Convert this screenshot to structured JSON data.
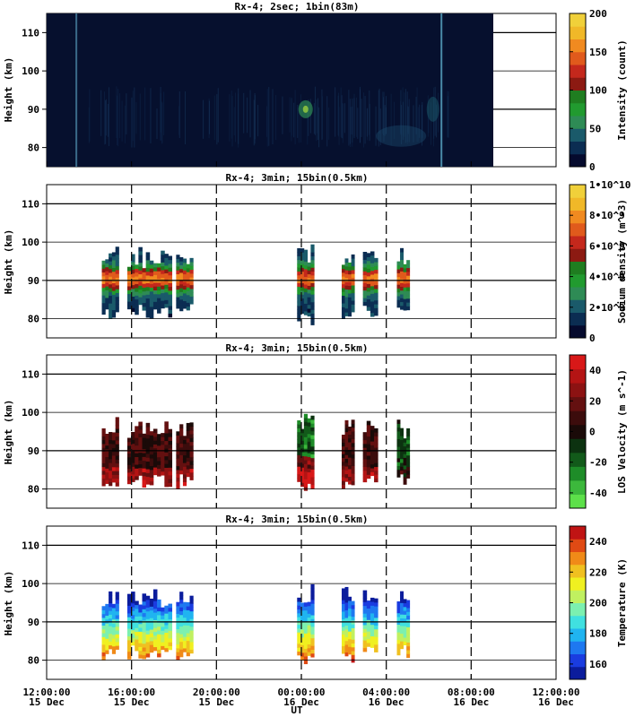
{
  "figure": {
    "xaxis": {
      "label": "UT",
      "ticks": [
        {
          "time": "12:00:00",
          "date": "15 Dec"
        },
        {
          "time": "16:00:00",
          "date": "15 Dec"
        },
        {
          "time": "20:00:00",
          "date": "15 Dec"
        },
        {
          "time": "00:00:00",
          "date": "16 Dec"
        },
        {
          "time": "04:00:00",
          "date": "16 Dec"
        },
        {
          "time": "08:00:00",
          "date": "16 Dec"
        },
        {
          "time": "12:00:00",
          "date": "16 Dec"
        }
      ]
    }
  },
  "chart_data": [
    {
      "type": "heatmap",
      "title": "Rx-4;  2sec; 1bin(83m)",
      "ylabel": "Height (km)",
      "ylim": [
        75,
        115
      ],
      "yticks": [
        80,
        90,
        100,
        110
      ],
      "xlim_hours": [
        12,
        36
      ],
      "colorbar": {
        "label": "Intensity (count)",
        "range": [
          0,
          200
        ],
        "ticks": [
          "0",
          "50",
          "100",
          "150",
          "200"
        ],
        "colors": [
          "#050a2d",
          "#0b2d52",
          "#1a5a6a",
          "#2e8b55",
          "#219a2f",
          "#1f7d20",
          "#8c1a12",
          "#c4281c",
          "#e05a1c",
          "#f08a20",
          "#f0b828",
          "#f0d03a"
        ]
      },
      "data_extent_hours": [
        12,
        31.2
      ]
    },
    {
      "type": "heatmap",
      "title": "Rx-4; 3min; 15bin(0.5km)",
      "ylabel": "Height (km)",
      "ylim": [
        75,
        115
      ],
      "yticks": [
        80,
        90,
        100,
        110
      ],
      "colorbar": {
        "label": "Sodium density (m^-3)",
        "range": [
          0,
          10000000000.0
        ],
        "ticks": [
          "0",
          "2•10^9",
          "4•10^9",
          "6•10^9",
          "8•10^9",
          "1•10^10"
        ],
        "colors": [
          "#050a2d",
          "#0b2d52",
          "#1a5a6a",
          "#2e8b55",
          "#219a2f",
          "#1f7d20",
          "#8c1a12",
          "#c4281c",
          "#e05a1c",
          "#f08a20",
          "#f0b828",
          "#f0d03a"
        ]
      },
      "segments_hours": [
        [
          14.6,
          15.4
        ],
        [
          15.8,
          17.9
        ],
        [
          18.1,
          18.9
        ],
        [
          23.8,
          24.6
        ],
        [
          25.9,
          26.5
        ],
        [
          26.9,
          27.6
        ],
        [
          28.5,
          29.1
        ]
      ]
    },
    {
      "type": "heatmap",
      "title": "Rx-4; 3min; 15bin(0.5km)",
      "ylabel": "Height (km)",
      "ylim": [
        75,
        115
      ],
      "yticks": [
        80,
        90,
        100,
        110
      ],
      "colorbar": {
        "label": "LOS Velocity (m s^-1)",
        "range": [
          -50,
          50
        ],
        "ticks": [
          "-40",
          "-20",
          "0",
          "20",
          "40"
        ],
        "colors": [
          "#5de04a",
          "#3cb83c",
          "#1e8c28",
          "#125a1a",
          "#0c3210",
          "#1a0a08",
          "#3c0c0c",
          "#641010",
          "#8c1212",
          "#b41414",
          "#d81818"
        ]
      },
      "segments_hours": [
        [
          14.6,
          15.4
        ],
        [
          15.8,
          17.9
        ],
        [
          18.1,
          18.9
        ],
        [
          23.8,
          24.6
        ],
        [
          25.9,
          26.5
        ],
        [
          26.9,
          27.6
        ],
        [
          28.5,
          29.1
        ]
      ]
    },
    {
      "type": "heatmap",
      "title": "Rx-4; 3min; 15bin(0.5km)",
      "ylabel": "Height (km)",
      "ylim": [
        75,
        115
      ],
      "yticks": [
        80,
        90,
        100,
        110
      ],
      "colorbar": {
        "label": "Temperature (K)",
        "range": [
          150,
          250
        ],
        "ticks": [
          "160",
          "180",
          "200",
          "220",
          "240"
        ],
        "colors": [
          "#0b1c9c",
          "#1a3ce0",
          "#1e78f0",
          "#20b4f0",
          "#40e0e0",
          "#7cf0b0",
          "#c0f060",
          "#f0f020",
          "#f0c020",
          "#f08a18",
          "#e04a14",
          "#c01414"
        ]
      },
      "segments_hours": [
        [
          14.6,
          15.4
        ],
        [
          15.8,
          17.9
        ],
        [
          18.1,
          18.9
        ],
        [
          23.8,
          24.6
        ],
        [
          25.9,
          26.5
        ],
        [
          26.9,
          27.6
        ],
        [
          28.5,
          29.1
        ]
      ]
    }
  ]
}
